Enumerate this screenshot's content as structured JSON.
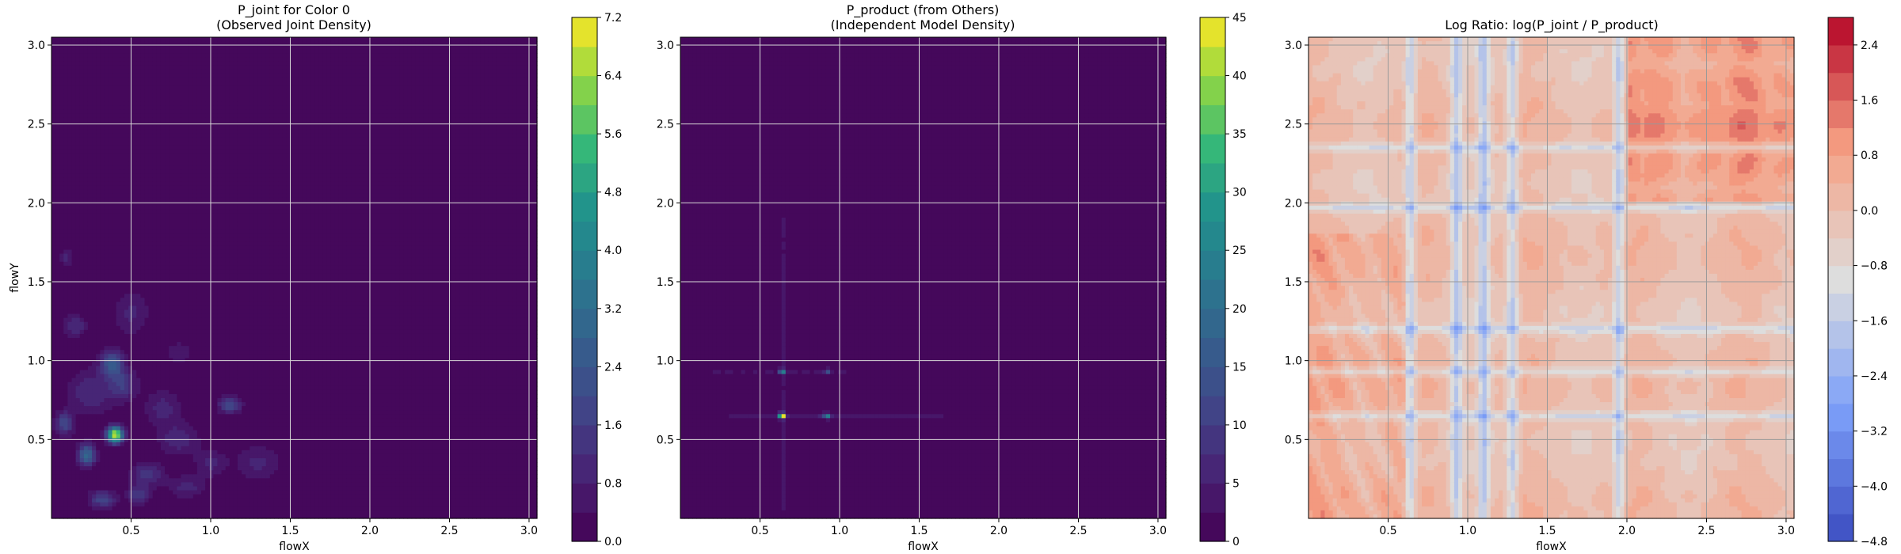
{
  "chart_data": [
    {
      "type": "heatmap",
      "title_line1": "P_joint for Color 0",
      "title_line2": "(Observed Joint Density)",
      "xlabel": "flowX",
      "ylabel": "flowY",
      "xlim": [
        0.0,
        3.05
      ],
      "ylim": [
        0.0,
        3.05
      ],
      "xticks": [
        "0.5",
        "1.0",
        "1.5",
        "2.0",
        "2.5",
        "3.0"
      ],
      "yticks": [
        "0.5",
        "1.0",
        "1.5",
        "2.0",
        "2.5",
        "3.0"
      ],
      "colormap": "viridis",
      "grid": true,
      "colorbar": {
        "min": 0.0,
        "max": 7.2,
        "ticks": [
          "0.0",
          "0.8",
          "1.6",
          "2.4",
          "3.2",
          "4.0",
          "4.8",
          "5.6",
          "6.4",
          "7.2"
        ],
        "levels": 18
      },
      "hotspots": [
        {
          "x": 0.4,
          "y": 0.53,
          "value": 7.0,
          "sx": 0.035,
          "sy": 0.035
        },
        {
          "x": 0.22,
          "y": 0.4,
          "value": 3.0,
          "sx": 0.04,
          "sy": 0.05
        },
        {
          "x": 0.38,
          "y": 0.98,
          "value": 2.4,
          "sx": 0.05,
          "sy": 0.06
        },
        {
          "x": 0.08,
          "y": 0.6,
          "value": 2.0,
          "sx": 0.04,
          "sy": 0.05
        },
        {
          "x": 0.15,
          "y": 1.22,
          "value": 1.2,
          "sx": 0.05,
          "sy": 0.05
        },
        {
          "x": 0.45,
          "y": 0.85,
          "value": 1.5,
          "sx": 0.06,
          "sy": 0.07
        },
        {
          "x": 1.12,
          "y": 0.72,
          "value": 2.0,
          "sx": 0.05,
          "sy": 0.04
        },
        {
          "x": 0.6,
          "y": 0.28,
          "value": 1.5,
          "sx": 0.07,
          "sy": 0.05
        },
        {
          "x": 0.32,
          "y": 0.12,
          "value": 1.8,
          "sx": 0.06,
          "sy": 0.04
        },
        {
          "x": 0.55,
          "y": 0.15,
          "value": 1.6,
          "sx": 0.05,
          "sy": 0.04
        },
        {
          "x": 0.8,
          "y": 0.5,
          "value": 1.1,
          "sx": 0.09,
          "sy": 0.07
        },
        {
          "x": 0.7,
          "y": 0.7,
          "value": 1.0,
          "sx": 0.08,
          "sy": 0.08
        },
        {
          "x": 0.5,
          "y": 1.3,
          "value": 0.9,
          "sx": 0.08,
          "sy": 0.1
        },
        {
          "x": 0.25,
          "y": 0.8,
          "value": 1.2,
          "sx": 0.1,
          "sy": 0.1
        },
        {
          "x": 0.8,
          "y": 1.05,
          "value": 0.8,
          "sx": 0.06,
          "sy": 0.05
        },
        {
          "x": 1.3,
          "y": 0.35,
          "value": 0.9,
          "sx": 0.1,
          "sy": 0.08
        },
        {
          "x": 0.1,
          "y": 1.65,
          "value": 0.9,
          "sx": 0.03,
          "sy": 0.05
        },
        {
          "x": 0.85,
          "y": 0.2,
          "value": 1.0,
          "sx": 0.08,
          "sy": 0.05
        },
        {
          "x": 1.0,
          "y": 0.35,
          "value": 0.9,
          "sx": 0.07,
          "sy": 0.06
        }
      ]
    },
    {
      "type": "heatmap",
      "title_line1": "P_product (from Others)",
      "title_line2": "(Independent Model Density)",
      "xlabel": "flowX",
      "ylabel": "",
      "xlim": [
        0.0,
        3.05
      ],
      "ylim": [
        0.0,
        3.05
      ],
      "xticks": [
        "0.5",
        "1.0",
        "1.5",
        "2.0",
        "2.5",
        "3.0"
      ],
      "yticks": [
        "0.5",
        "1.0",
        "1.5",
        "2.0",
        "2.5",
        "3.0"
      ],
      "colormap": "viridis",
      "grid": true,
      "colorbar": {
        "min": 0,
        "max": 45,
        "ticks": [
          "0",
          "5",
          "10",
          "15",
          "20",
          "25",
          "30",
          "35",
          "40",
          "45"
        ],
        "levels": 18
      },
      "hotspots": [
        {
          "x": 0.64,
          "y": 0.65,
          "value": 44,
          "sx": 0.015,
          "sy": 0.012
        },
        {
          "x": 0.92,
          "y": 0.65,
          "value": 20,
          "sx": 0.015,
          "sy": 0.012
        },
        {
          "x": 0.64,
          "y": 0.93,
          "value": 20,
          "sx": 0.015,
          "sy": 0.012
        },
        {
          "x": 0.92,
          "y": 0.93,
          "value": 9,
          "sx": 0.015,
          "sy": 0.012
        }
      ],
      "lines": [
        {
          "axis": "y",
          "at": 0.65,
          "from": 0.3,
          "to": 1.65,
          "value": 5
        },
        {
          "axis": "y",
          "at": 0.93,
          "from": 0.2,
          "to": 1.05,
          "value": 3
        },
        {
          "axis": "x",
          "at": 0.64,
          "from": 0.02,
          "to": 1.9,
          "value": 5
        },
        {
          "axis": "x",
          "at": 0.92,
          "from": 0.25,
          "to": 1.1,
          "value": 3
        }
      ]
    },
    {
      "type": "heatmap",
      "title_line1": "Log Ratio: log(P_joint / P_product)",
      "title_line2": "",
      "xlabel": "flowX",
      "ylabel": "",
      "xlim": [
        0.0,
        3.05
      ],
      "ylim": [
        0.0,
        3.05
      ],
      "xticks": [
        "0.5",
        "1.0",
        "1.5",
        "2.0",
        "2.5",
        "3.0"
      ],
      "yticks": [
        "0.5",
        "1.0",
        "1.5",
        "2.0",
        "2.5",
        "3.0"
      ],
      "colormap": "coolwarm",
      "grid": true,
      "colorbar": {
        "min": -4.8,
        "max": 2.8,
        "ticks": [
          "2.4",
          "1.6",
          "0.8",
          "0.0",
          "−0.8",
          "−1.6",
          "−2.4",
          "−3.2",
          "−4.0",
          "−4.8"
        ],
        "tick_values": [
          2.4,
          1.6,
          0.8,
          0.0,
          -0.8,
          -1.6,
          -2.4,
          -3.2,
          -4.0,
          -4.8
        ],
        "levels": 19
      },
      "blue_columns_x": [
        0.64,
        0.93,
        1.1,
        1.28,
        1.95
      ],
      "blue_rows_y": [
        0.65,
        0.93,
        1.97,
        2.35,
        1.2
      ],
      "warm_region": {
        "x_from": 2.0,
        "y_from": 2.0,
        "value": 1.2
      }
    }
  ]
}
